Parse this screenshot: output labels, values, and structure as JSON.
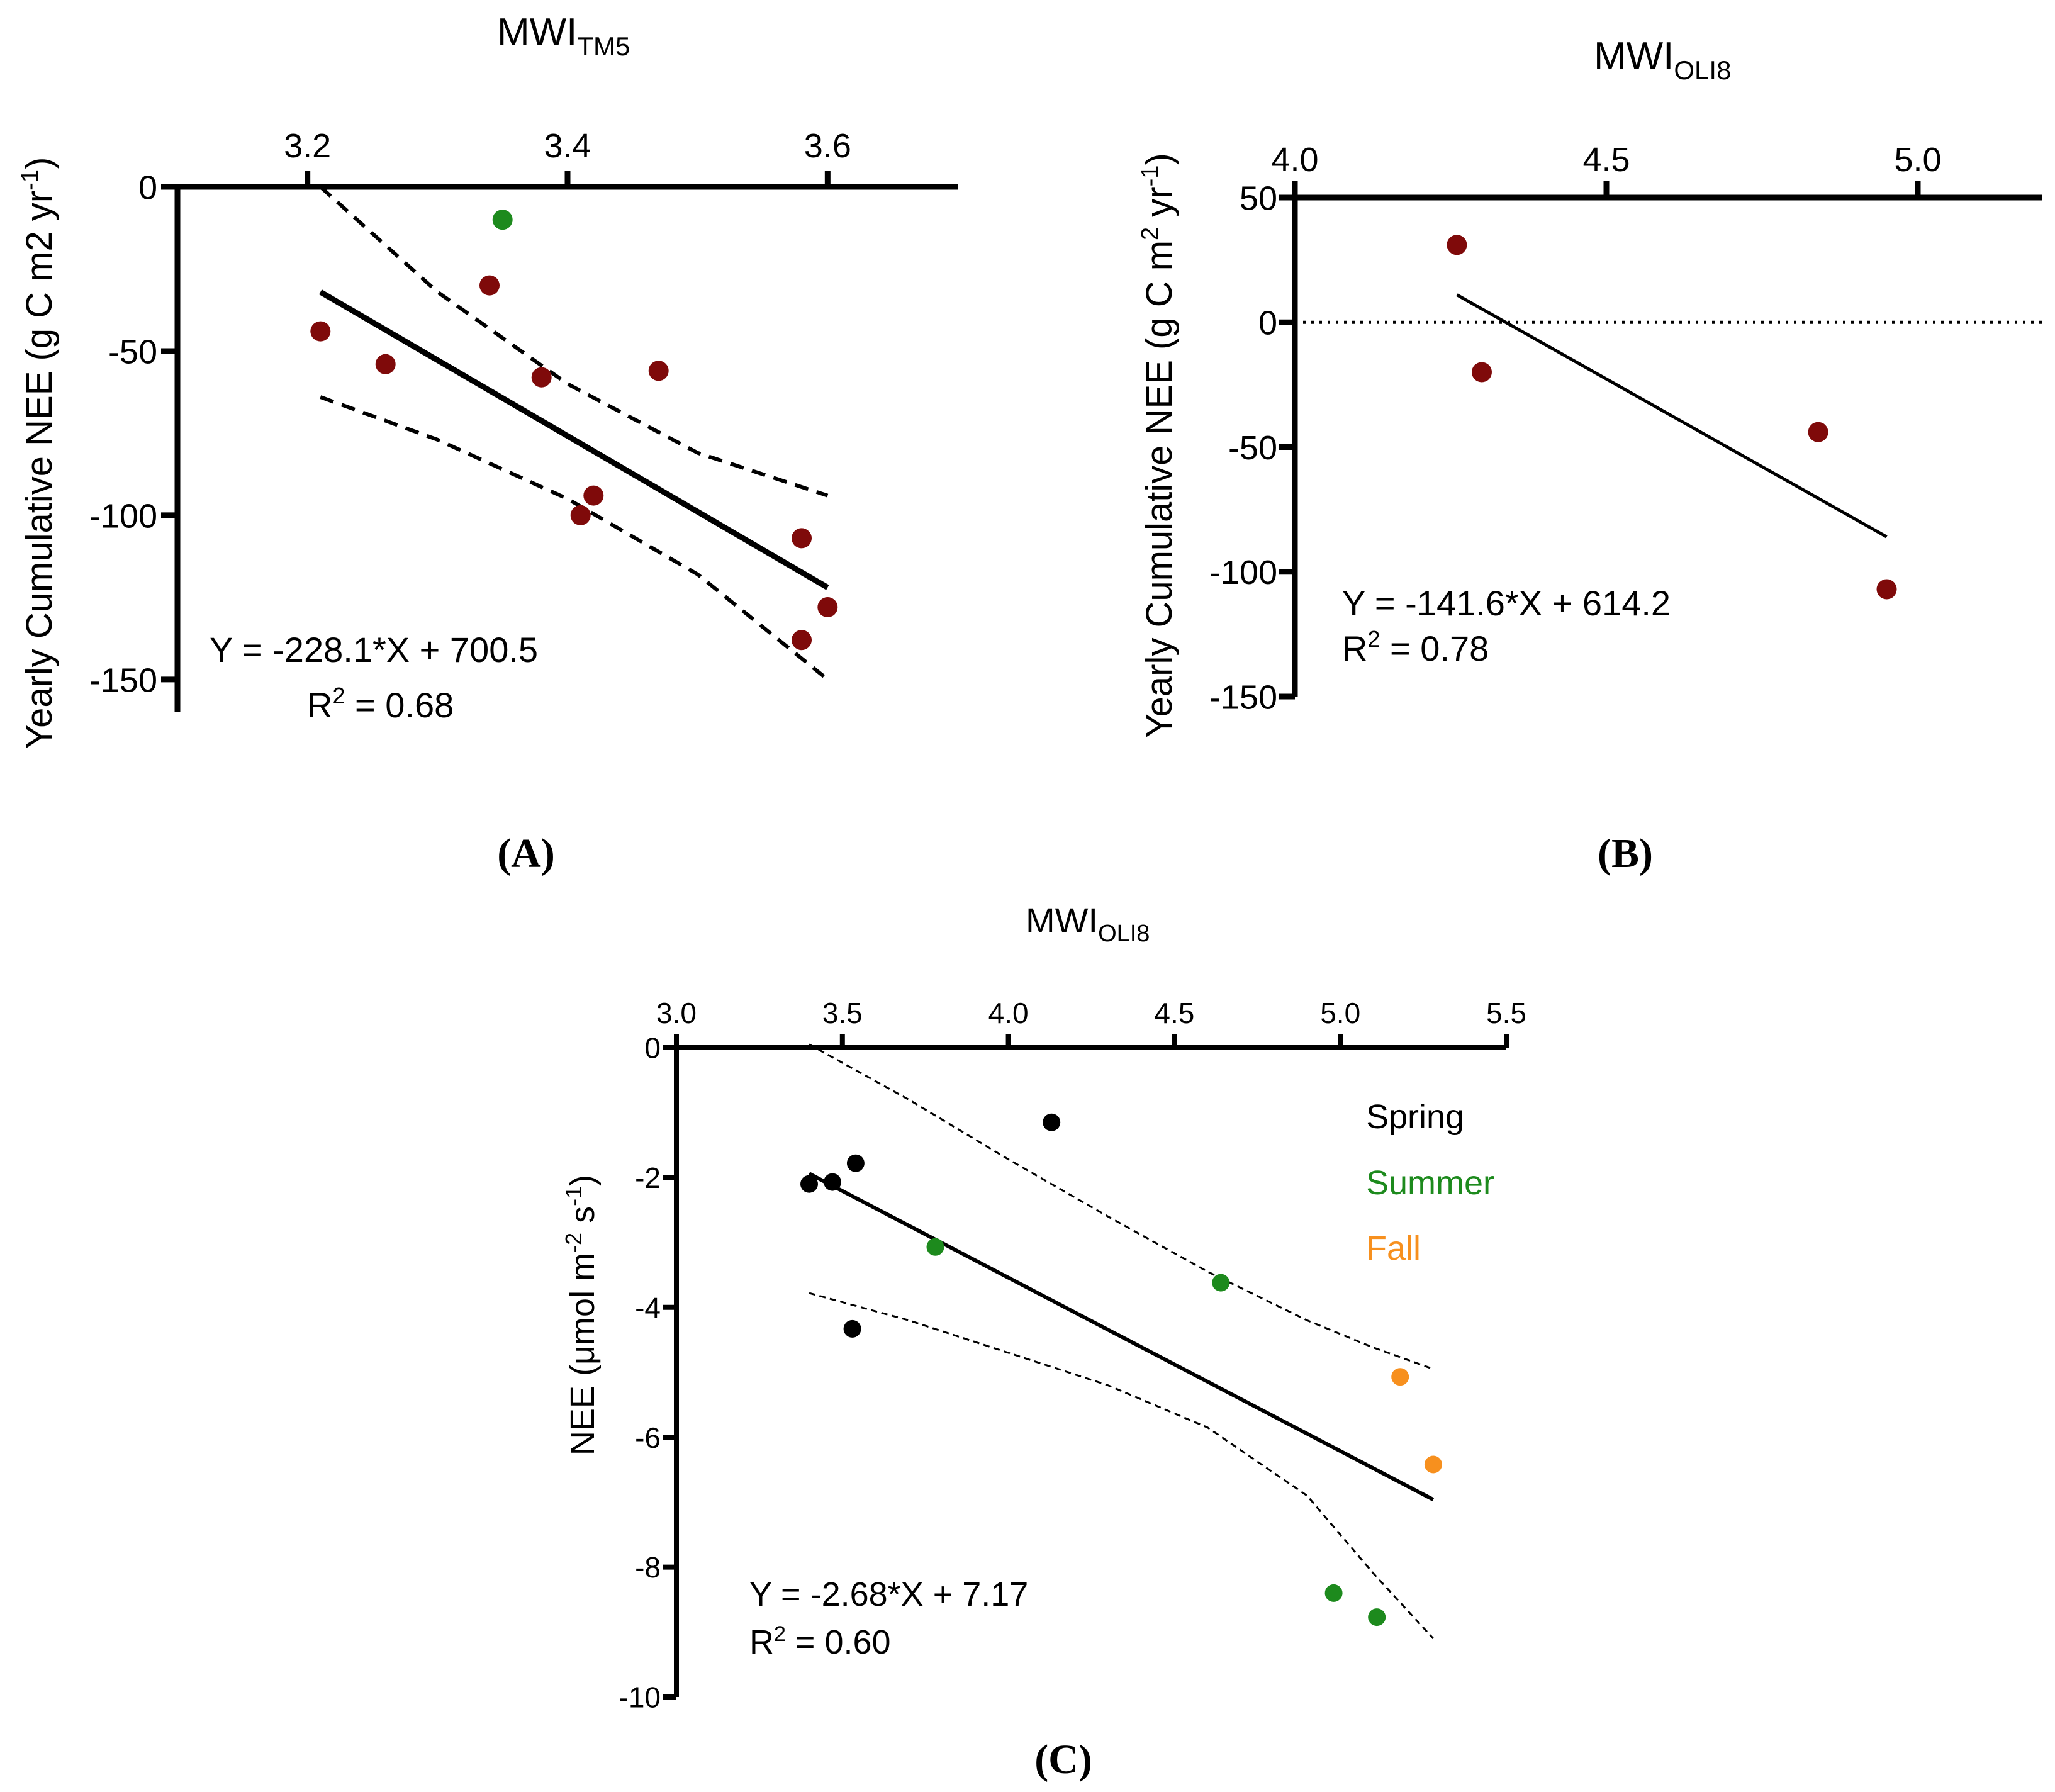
{
  "figure": {
    "panel_labels": [
      "(A)",
      "(B)",
      "(C)"
    ]
  },
  "colors": {
    "dark_red": "#7f0a0a",
    "green": "#1d8a1d",
    "black": "#000000",
    "orange": "#f7901e"
  },
  "chart_data": [
    {
      "id": "A",
      "type": "scatter",
      "title_main": "MWI",
      "title_sub": "TM5",
      "xlabel": "",
      "ylabel": "Yearly Cumulative NEE (g C m2 yr",
      "ylabel_sup": "-1",
      "ylabel_end": ")",
      "xlim": [
        3.1,
        3.7
      ],
      "ylim": [
        -160,
        0
      ],
      "x_ticks": [
        3.2,
        3.4,
        3.6
      ],
      "x_tick_labels": [
        "3.2",
        "3.4",
        "3.6"
      ],
      "y_ticks": [
        0,
        -50,
        -100,
        -150
      ],
      "y_tick_labels": [
        "0",
        "-50",
        "-100",
        "-150"
      ],
      "x_axis_position": "top",
      "points": [
        {
          "x": 3.21,
          "y": -44,
          "color": "dark_red"
        },
        {
          "x": 3.26,
          "y": -54,
          "color": "dark_red"
        },
        {
          "x": 3.34,
          "y": -30,
          "color": "dark_red"
        },
        {
          "x": 3.35,
          "y": -10,
          "color": "green"
        },
        {
          "x": 3.38,
          "y": -58,
          "color": "dark_red"
        },
        {
          "x": 3.41,
          "y": -100,
          "color": "dark_red"
        },
        {
          "x": 3.42,
          "y": -94,
          "color": "dark_red"
        },
        {
          "x": 3.47,
          "y": -56,
          "color": "dark_red"
        },
        {
          "x": 3.58,
          "y": -107,
          "color": "dark_red"
        },
        {
          "x": 3.58,
          "y": -138,
          "color": "dark_red"
        },
        {
          "x": 3.6,
          "y": -128,
          "color": "dark_red"
        }
      ],
      "fit_line": {
        "x": [
          3.21,
          3.6
        ],
        "y": [
          -32,
          -122
        ]
      },
      "ci_upper": {
        "x": [
          3.21,
          3.3,
          3.4,
          3.5,
          3.6
        ],
        "y": [
          0,
          -32,
          -60,
          -81,
          -94
        ]
      },
      "ci_lower": {
        "x": [
          3.21,
          3.3,
          3.4,
          3.5,
          3.6
        ],
        "y": [
          -64,
          -77,
          -95,
          -118,
          -150
        ]
      },
      "equation": "Y = -228.1*X + 700.5",
      "r2_prefix": "R",
      "r2_sup": "2",
      "r2_value": " = 0.68"
    },
    {
      "id": "B",
      "type": "scatter",
      "title_main": "MWI",
      "title_sub": "OLI8",
      "xlabel": "",
      "ylabel": "Yearly Cumulative NEE (g C m",
      "ylabel_sup1": "2",
      "ylabel_mid": " yr",
      "ylabel_sup2": "-1",
      "ylabel_end": ")",
      "xlim": [
        4.0,
        5.2
      ],
      "ylim": [
        -150,
        50
      ],
      "x_ticks": [
        4.0,
        4.5,
        5.0
      ],
      "x_tick_labels": [
        "4.0",
        "4.5",
        "5.0"
      ],
      "y_ticks": [
        50,
        0,
        -50,
        -100,
        -150
      ],
      "y_tick_labels": [
        "50",
        "0",
        "-50",
        "-100",
        "-150"
      ],
      "x_axis_position": "top",
      "zero_line": "dotted",
      "points": [
        {
          "x": 4.26,
          "y": 31,
          "color": "dark_red"
        },
        {
          "x": 4.3,
          "y": -20,
          "color": "dark_red"
        },
        {
          "x": 4.84,
          "y": -44,
          "color": "dark_red"
        },
        {
          "x": 4.95,
          "y": -107,
          "color": "dark_red"
        }
      ],
      "fit_line": {
        "x": [
          4.26,
          4.95
        ],
        "y": [
          11,
          -86
        ]
      },
      "equation": "Y = -141.6*X + 614.2",
      "r2_prefix": "R",
      "r2_sup": "2",
      "r2_value": " = 0.78"
    },
    {
      "id": "C",
      "type": "scatter",
      "title_main": "MWI",
      "title_sub": "OLI8",
      "xlabel": "",
      "ylabel": "NEE (μmol m",
      "ylabel_sup1": "-2",
      "ylabel_mid": " s",
      "ylabel_sup2": "-1",
      "ylabel_end": ")",
      "xlim": [
        3.0,
        5.5
      ],
      "ylim": [
        -10,
        0
      ],
      "x_ticks": [
        3.0,
        3.5,
        4.0,
        4.5,
        5.0,
        5.5
      ],
      "x_tick_labels": [
        "3.0",
        "3.5",
        "4.0",
        "4.5",
        "5.0",
        "5.5"
      ],
      "y_ticks": [
        0,
        -2,
        -4,
        -6,
        -8,
        -10
      ],
      "y_tick_labels": [
        "0",
        "-2",
        "-4",
        "-6",
        "-8",
        "-10"
      ],
      "x_axis_position": "top",
      "legend": [
        {
          "label": "Spring",
          "color": "black"
        },
        {
          "label": "Summer",
          "color": "green"
        },
        {
          "label": "Fall",
          "color": "orange"
        }
      ],
      "legend_position": "top-right",
      "points": [
        {
          "x": 3.4,
          "y": -2.1,
          "color": "black"
        },
        {
          "x": 3.47,
          "y": -2.07,
          "color": "black"
        },
        {
          "x": 3.54,
          "y": -1.78,
          "color": "black"
        },
        {
          "x": 3.53,
          "y": -4.33,
          "color": "black"
        },
        {
          "x": 4.13,
          "y": -1.15,
          "color": "black"
        },
        {
          "x": 3.78,
          "y": -3.07,
          "color": "green"
        },
        {
          "x": 4.64,
          "y": -3.62,
          "color": "green"
        },
        {
          "x": 4.98,
          "y": -8.4,
          "color": "green"
        },
        {
          "x": 5.11,
          "y": -8.77,
          "color": "green"
        },
        {
          "x": 5.18,
          "y": -5.07,
          "color": "orange"
        },
        {
          "x": 5.28,
          "y": -6.42,
          "color": "orange"
        }
      ],
      "fit_line": {
        "x": [
          3.4,
          5.28
        ],
        "y": [
          -1.94,
          -6.96
        ]
      },
      "ci_upper": {
        "x": [
          3.4,
          3.7,
          4.0,
          4.3,
          4.6,
          4.9,
          5.1,
          5.28
        ],
        "y": [
          0.05,
          -0.8,
          -1.72,
          -2.6,
          -3.45,
          -4.2,
          -4.62,
          -4.95
        ]
      },
      "ci_lower": {
        "x": [
          3.4,
          3.7,
          4.0,
          4.3,
          4.6,
          4.9,
          5.1,
          5.28
        ],
        "y": [
          -3.78,
          -4.2,
          -4.7,
          -5.2,
          -5.85,
          -6.9,
          -8.1,
          -9.1
        ]
      },
      "equation": "Y = -2.68*X + 7.17",
      "r2_prefix": "R",
      "r2_sup": "2",
      "r2_value": " = 0.60"
    }
  ]
}
